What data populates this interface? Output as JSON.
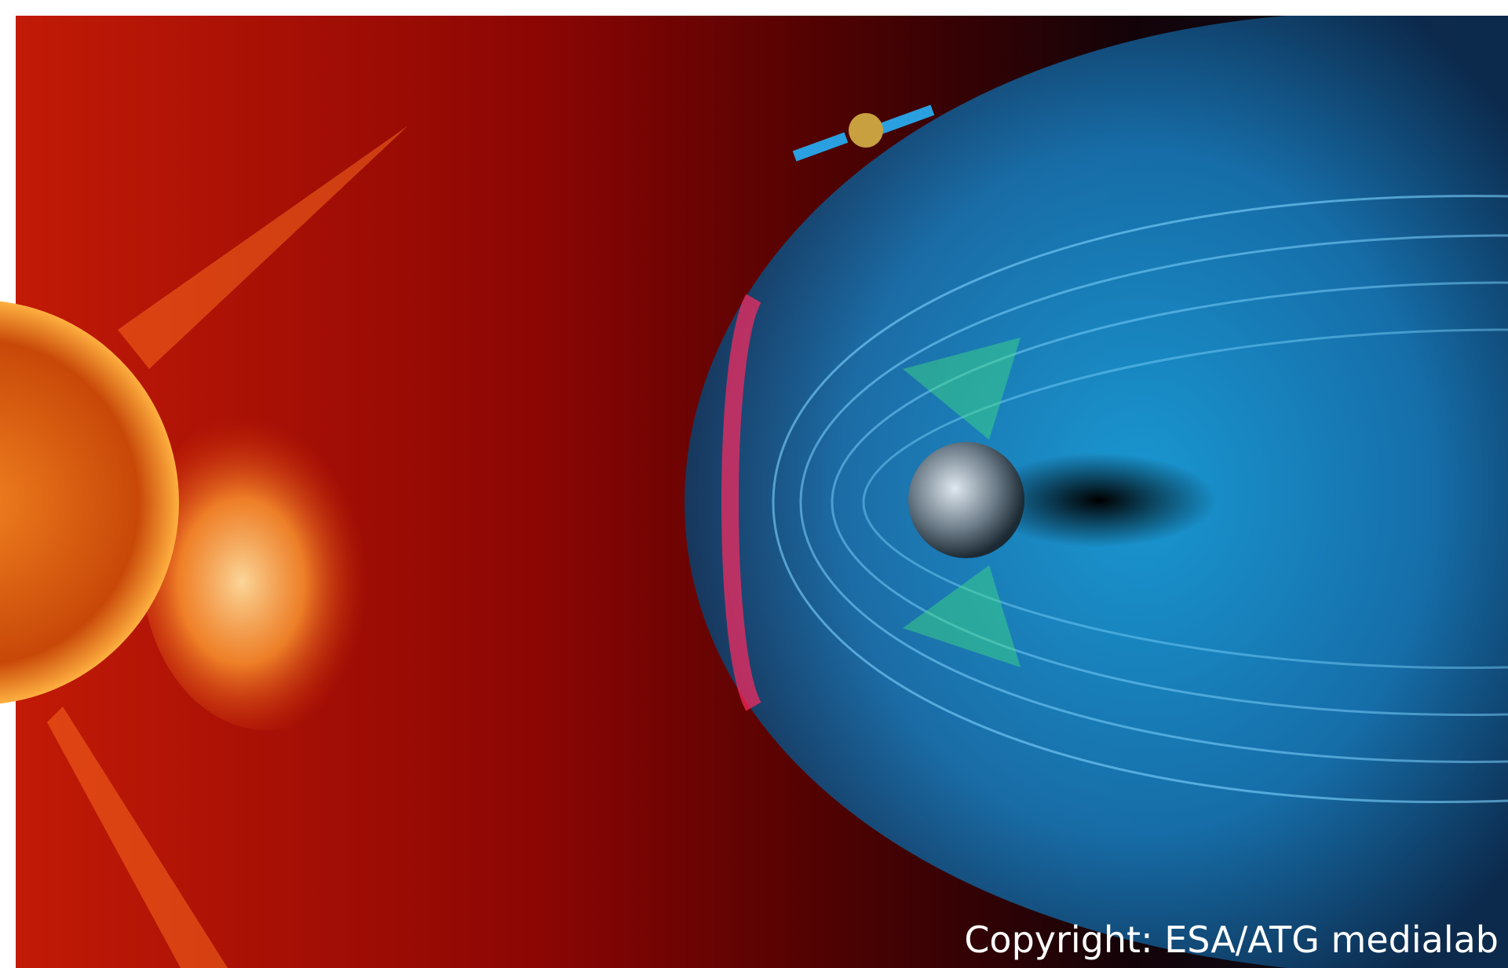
{
  "copyright": "Copyright: ESA/ATG medialab"
}
